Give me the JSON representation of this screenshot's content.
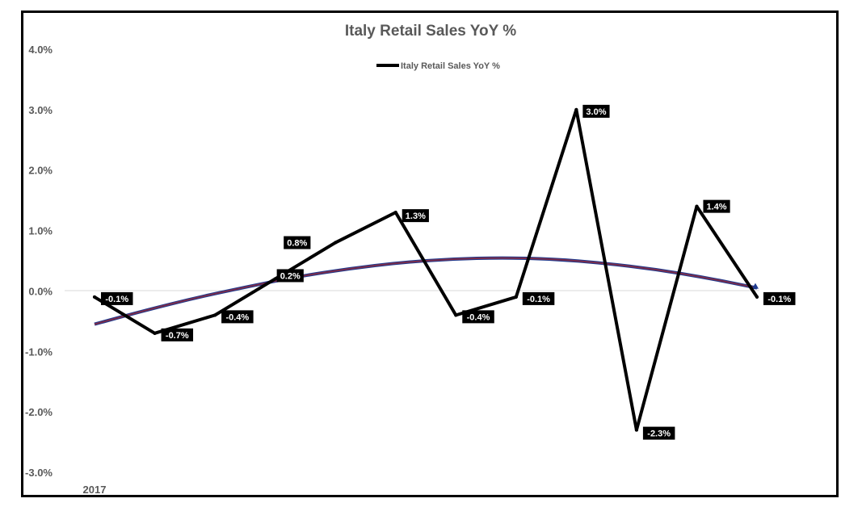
{
  "chart_data": {
    "type": "line",
    "title": "Italy Retail Sales YoY %",
    "xlabel": "",
    "ylabel": "",
    "x_tick_labels": [
      "2017"
    ],
    "y_ticks": [
      "4.0%",
      "3.0%",
      "2.0%",
      "1.0%",
      "0.0%",
      "-1.0%",
      "-2.0%",
      "-3.0%"
    ],
    "ylim": [
      -3,
      4
    ],
    "grid": false,
    "legend_position": "top",
    "series": [
      {
        "name": "Italy Retail Sales YoY %",
        "color": "#000000",
        "values": [
          -0.1,
          -0.7,
          -0.4,
          0.2,
          0.8,
          1.3,
          -0.4,
          -0.1,
          3.0,
          -2.3,
          1.4,
          -0.1
        ],
        "labels": [
          "-0.1%",
          "-0.7%",
          "-0.4%",
          "0.2%",
          "0.8%",
          "1.3%",
          "-0.4%",
          "-0.1%",
          "3.0%",
          "-2.3%",
          "1.4%",
          "-0.1%"
        ]
      }
    ],
    "trendline": {
      "type": "polynomial",
      "color": "#7b2c4a",
      "values": [
        -0.55,
        -0.32,
        -0.11,
        0.07,
        0.24,
        0.37,
        0.47,
        0.53,
        0.55,
        0.53,
        0.46,
        0.36,
        0.22,
        0.05
      ]
    }
  }
}
